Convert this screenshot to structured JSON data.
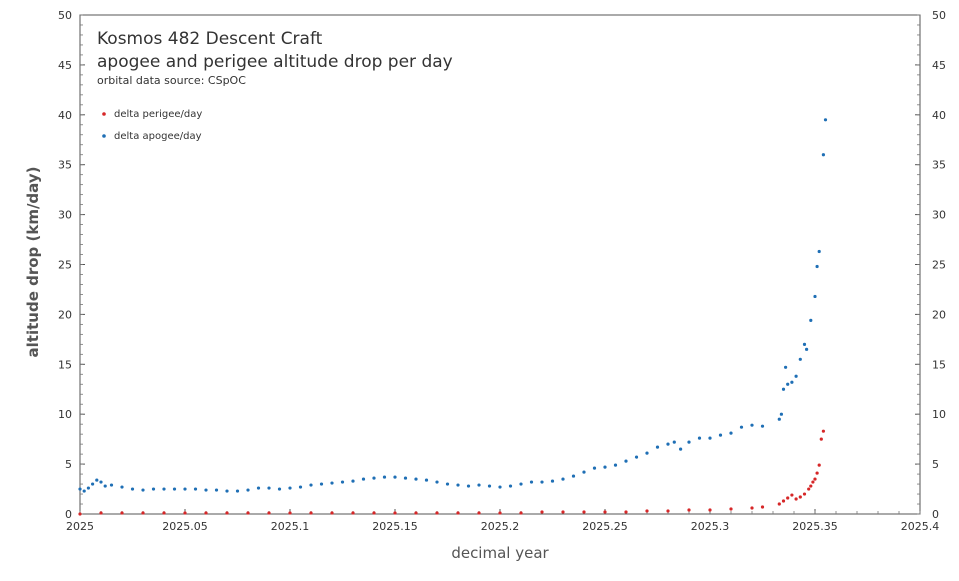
{
  "chart_data": {
    "type": "scatter",
    "title": "Kosmos 482 Descent Craft",
    "subtitle": "apogee and perigee altitude drop per day",
    "source_note": "orbital data source:   CSpOC",
    "xlabel": "decimal year",
    "ylabel": "altitude drop (km/day)",
    "xlim": [
      2025,
      2025.4
    ],
    "ylim": [
      0,
      50
    ],
    "x_ticks": [
      "2025",
      "2025.05",
      "2025.1",
      "2025.15",
      "2025.2",
      "2025.25",
      "2025.3",
      "2025.35",
      "2025.4"
    ],
    "y_ticks": [
      "0",
      "5",
      "10",
      "15",
      "20",
      "25",
      "30",
      "35",
      "40",
      "45",
      "50"
    ],
    "series": [
      {
        "name": "delta perigee/day",
        "color": "#d62728",
        "x": [
          2025.0,
          2025.01,
          2025.02,
          2025.03,
          2025.04,
          2025.05,
          2025.06,
          2025.07,
          2025.08,
          2025.09,
          2025.1,
          2025.11,
          2025.12,
          2025.13,
          2025.14,
          2025.15,
          2025.16,
          2025.17,
          2025.18,
          2025.19,
          2025.2,
          2025.21,
          2025.22,
          2025.23,
          2025.24,
          2025.25,
          2025.26,
          2025.27,
          2025.28,
          2025.29,
          2025.3,
          2025.31,
          2025.32,
          2025.325,
          2025.333,
          2025.335,
          2025.337,
          2025.339,
          2025.341,
          2025.343,
          2025.345,
          2025.347,
          2025.348,
          2025.349,
          2025.35,
          2025.351,
          2025.352,
          2025.353,
          2025.354
        ],
        "values": [
          0.0,
          0.1,
          0.1,
          0.1,
          0.1,
          0.1,
          0.1,
          0.1,
          0.1,
          0.1,
          0.1,
          0.1,
          0.1,
          0.1,
          0.1,
          0.1,
          0.1,
          0.1,
          0.1,
          0.1,
          0.1,
          0.1,
          0.2,
          0.2,
          0.2,
          0.2,
          0.2,
          0.3,
          0.3,
          0.4,
          0.4,
          0.5,
          0.6,
          0.7,
          1.0,
          1.3,
          1.6,
          1.9,
          1.5,
          1.7,
          2.0,
          2.5,
          2.8,
          3.2,
          3.5,
          4.1,
          4.9,
          7.5,
          8.3
        ]
      },
      {
        "name": "delta apogee/day",
        "color": "#1f6fb5",
        "x": [
          2025.0,
          2025.002,
          2025.004,
          2025.006,
          2025.008,
          2025.01,
          2025.012,
          2025.015,
          2025.02,
          2025.025,
          2025.03,
          2025.035,
          2025.04,
          2025.045,
          2025.05,
          2025.055,
          2025.06,
          2025.065,
          2025.07,
          2025.075,
          2025.08,
          2025.085,
          2025.09,
          2025.095,
          2025.1,
          2025.105,
          2025.11,
          2025.115,
          2025.12,
          2025.125,
          2025.13,
          2025.135,
          2025.14,
          2025.145,
          2025.15,
          2025.155,
          2025.16,
          2025.165,
          2025.17,
          2025.175,
          2025.18,
          2025.185,
          2025.19,
          2025.195,
          2025.2,
          2025.205,
          2025.21,
          2025.215,
          2025.22,
          2025.225,
          2025.23,
          2025.235,
          2025.24,
          2025.245,
          2025.25,
          2025.255,
          2025.26,
          2025.265,
          2025.27,
          2025.275,
          2025.28,
          2025.283,
          2025.286,
          2025.29,
          2025.295,
          2025.3,
          2025.305,
          2025.31,
          2025.315,
          2025.32,
          2025.325,
          2025.333,
          2025.334,
          2025.335,
          2025.336,
          2025.337,
          2025.339,
          2025.341,
          2025.343,
          2025.345,
          2025.346,
          2025.348,
          2025.35,
          2025.351,
          2025.352,
          2025.354,
          2025.355
        ],
        "values": [
          2.5,
          2.3,
          2.6,
          3.0,
          3.4,
          3.2,
          2.8,
          2.9,
          2.7,
          2.5,
          2.4,
          2.5,
          2.5,
          2.5,
          2.5,
          2.5,
          2.4,
          2.4,
          2.3,
          2.3,
          2.4,
          2.6,
          2.6,
          2.5,
          2.6,
          2.7,
          2.9,
          3.0,
          3.1,
          3.2,
          3.3,
          3.5,
          3.6,
          3.7,
          3.7,
          3.6,
          3.5,
          3.4,
          3.2,
          3.0,
          2.9,
          2.8,
          2.9,
          2.8,
          2.7,
          2.8,
          3.0,
          3.2,
          3.2,
          3.3,
          3.5,
          3.8,
          4.2,
          4.6,
          4.7,
          4.9,
          5.3,
          5.7,
          6.1,
          6.7,
          7.0,
          7.2,
          6.5,
          7.2,
          7.6,
          7.6,
          7.9,
          8.1,
          8.7,
          8.9,
          8.8,
          9.5,
          10.0,
          12.5,
          14.7,
          13.0,
          13.2,
          13.8,
          15.5,
          17.0,
          16.5,
          19.4,
          21.8,
          24.8,
          26.3,
          36.0,
          39.5
        ]
      }
    ],
    "legend_position": "top-left"
  }
}
